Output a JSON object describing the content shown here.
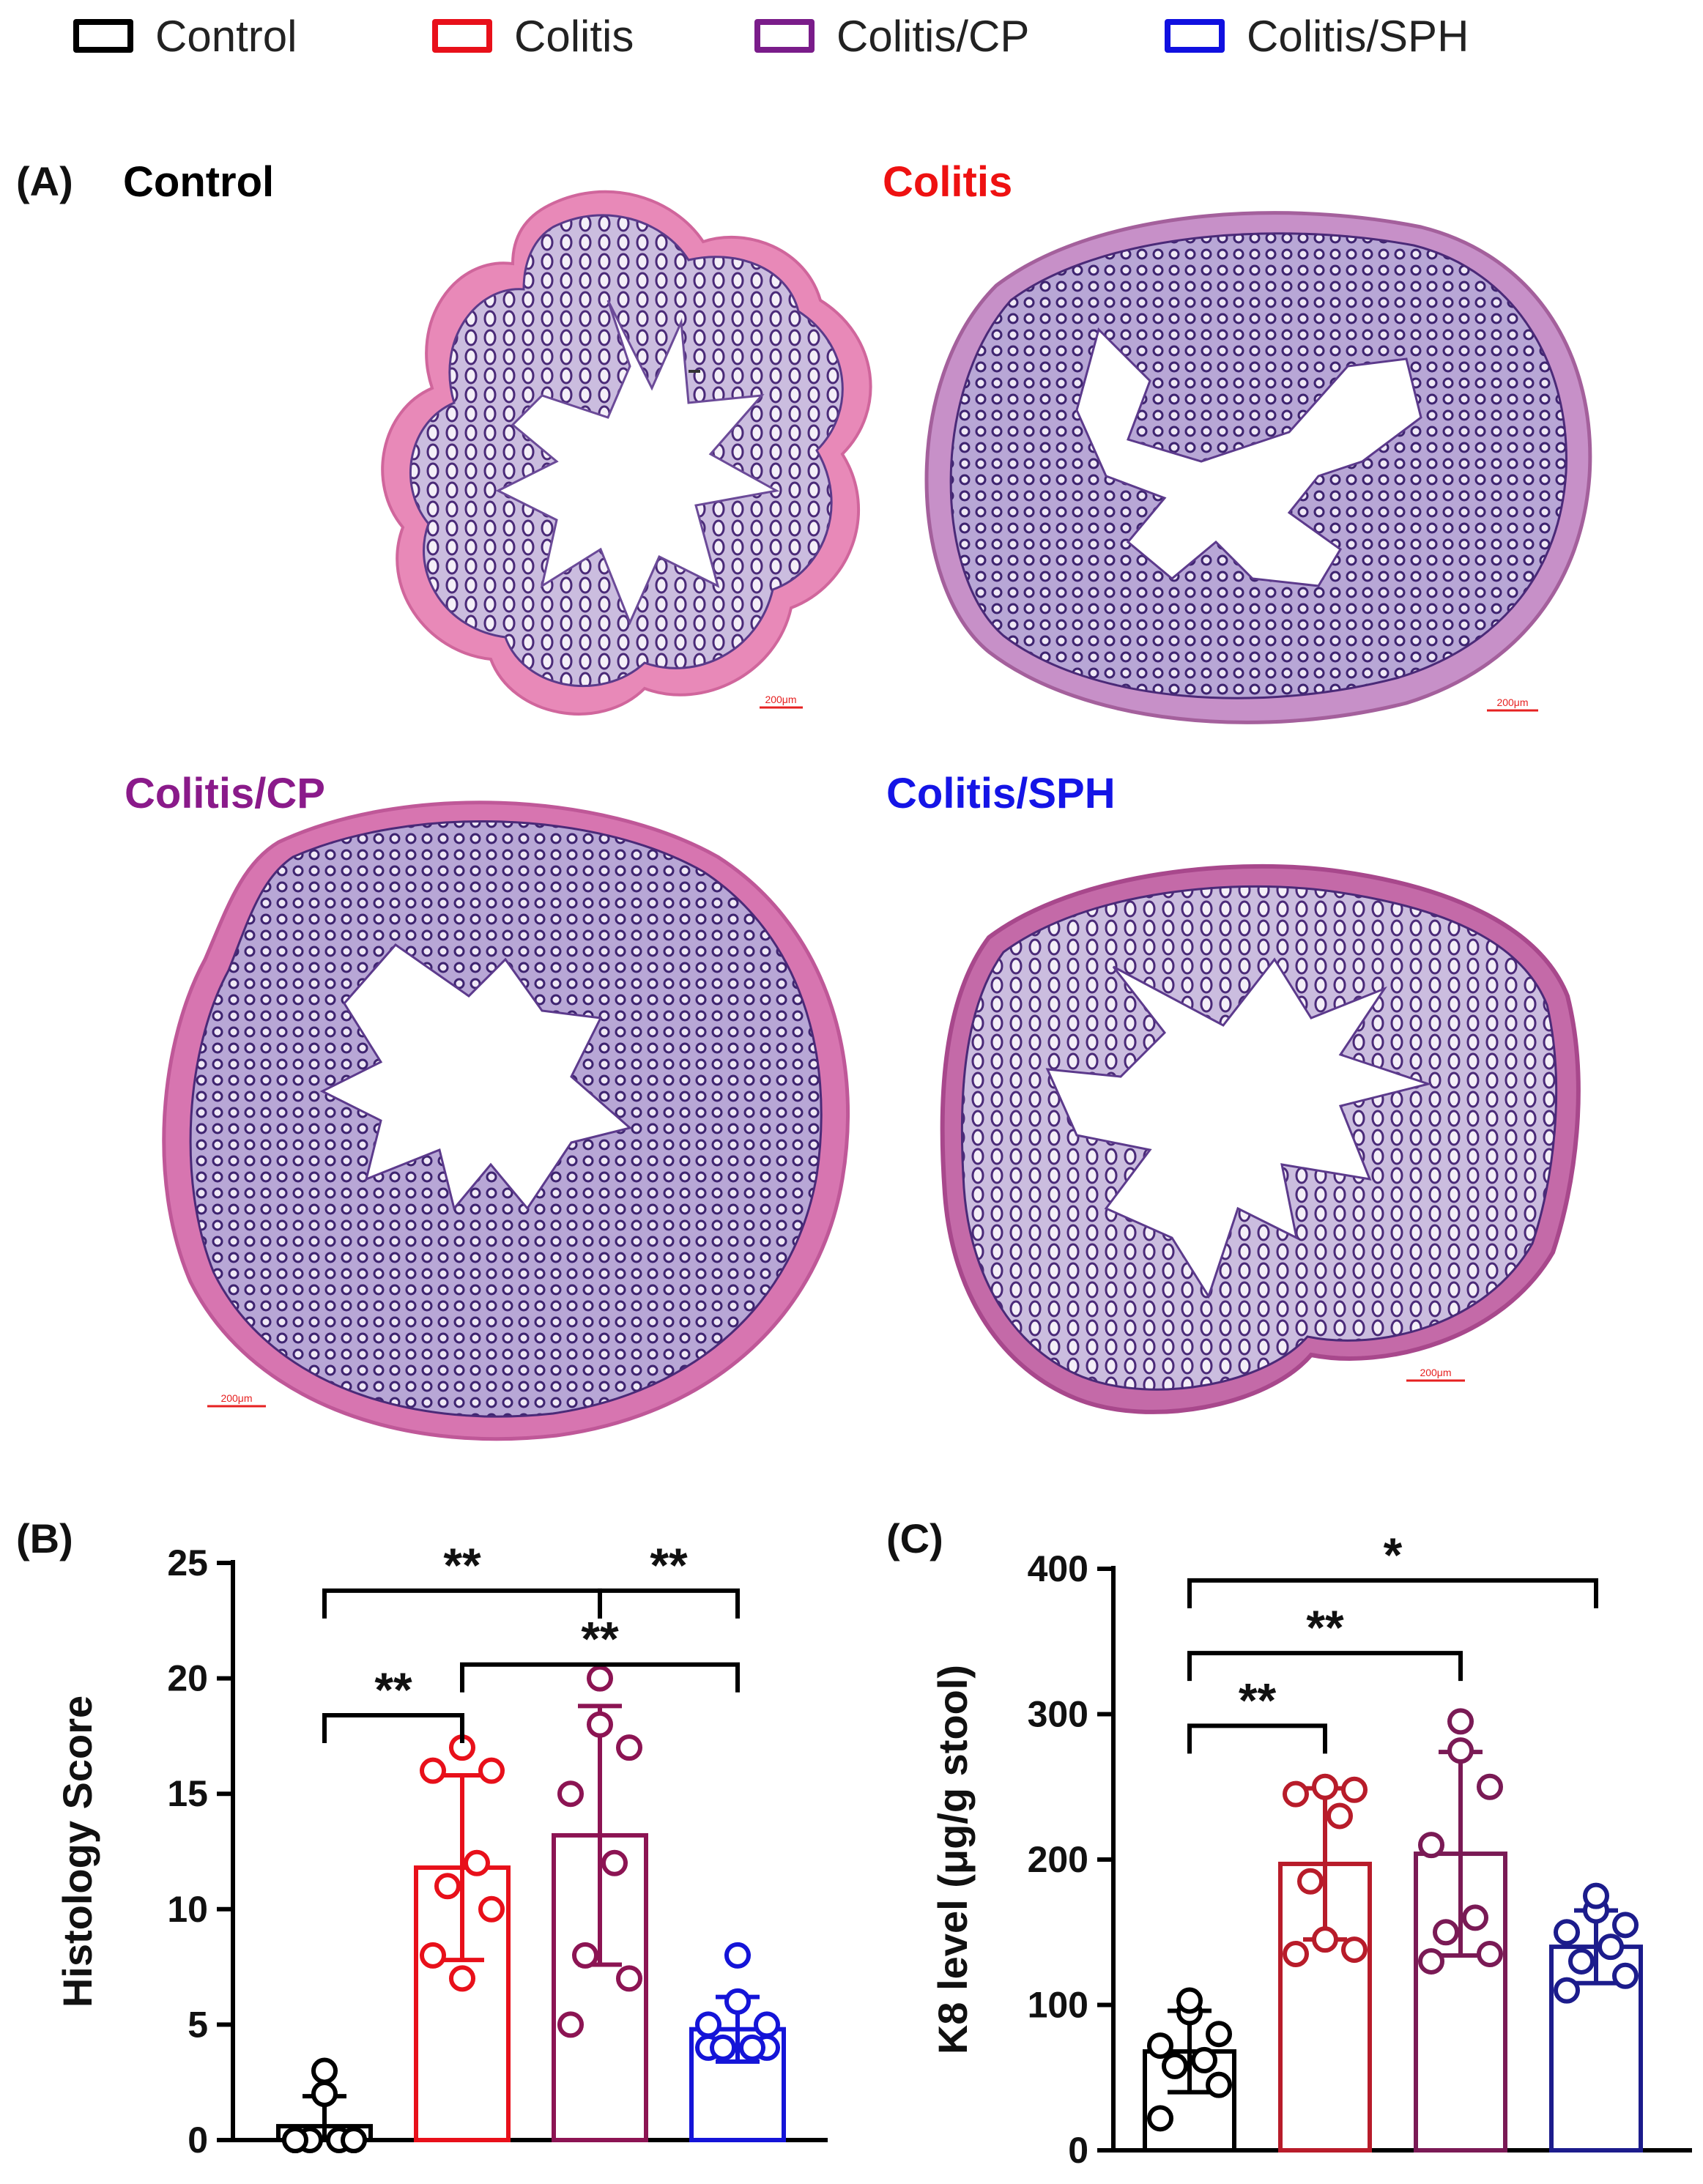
{
  "legend": [
    {
      "label": "Control",
      "color": "#000000"
    },
    {
      "label": "Colitis",
      "color": "#e8101a"
    },
    {
      "label": "Colitis/CP",
      "color": "#7a1c8a"
    },
    {
      "label": "Colitis/SPH",
      "color": "#1010e0"
    }
  ],
  "panel_a": {
    "label": "(A)",
    "images": [
      {
        "title": "Control",
        "title_color": "#000000",
        "scale_bar": "200μm"
      },
      {
        "title": "Colitis",
        "title_color": "#ee1111",
        "scale_bar": "200μm"
      },
      {
        "title": "Colitis/CP",
        "title_color": "#8a1a8a",
        "scale_bar": "200μm"
      },
      {
        "title": "Colitis/SPH",
        "title_color": "#1414e6",
        "scale_bar": "200μm"
      }
    ]
  },
  "chart_data": [
    {
      "panel_label": "(B)",
      "type": "bar",
      "categories": [
        "Control",
        "Colitis",
        "Colitis/CP",
        "Colitis/SPH"
      ],
      "colors": [
        "#000000",
        "#e8101a",
        "#8c1453",
        "#1414d8"
      ],
      "values": [
        0.6,
        11.8,
        13.2,
        4.8
      ],
      "sd": [
        1.3,
        4.0,
        5.6,
        1.4
      ],
      "points": [
        [
          0,
          0,
          0,
          0,
          0,
          0,
          2,
          3
        ],
        [
          8,
          10,
          11,
          12,
          16,
          16,
          17,
          7
        ],
        [
          5,
          7,
          8,
          12,
          15,
          17,
          18,
          20
        ],
        [
          4,
          4,
          4,
          4,
          5,
          5,
          6,
          8
        ]
      ],
      "ylabel": "Histology Score",
      "ylim": [
        0,
        25
      ],
      "yticks": [
        0,
        5,
        10,
        15,
        20,
        25
      ],
      "brackets": [
        {
          "from": 0,
          "to": 1,
          "y": 18.4,
          "label": "**"
        },
        {
          "from": 0,
          "to": 2,
          "y": 23.8,
          "label": "**"
        },
        {
          "from": 2,
          "to": 3,
          "y": 23.8,
          "label": "**"
        },
        {
          "from": 1,
          "to": 3,
          "y": 20.6,
          "label": "**"
        }
      ]
    },
    {
      "panel_label": "(C)",
      "type": "bar",
      "categories": [
        "Control",
        "Colitis",
        "Colitis/CP",
        "Colitis/SPH"
      ],
      "colors": [
        "#000000",
        "#b81c2a",
        "#7a1a55",
        "#1c1c8c"
      ],
      "values": [
        68,
        197,
        204,
        140
      ],
      "sd": [
        28,
        52,
        70,
        25
      ],
      "points": [
        [
          22,
          45,
          58,
          62,
          72,
          80,
          95,
          103
        ],
        [
          135,
          138,
          185,
          230,
          245,
          248,
          250,
          145
        ],
        [
          130,
          135,
          150,
          160,
          210,
          250,
          275,
          295
        ],
        [
          110,
          120,
          130,
          140,
          150,
          155,
          165,
          175
        ]
      ],
      "ylabel": "K8 level (μg/g stool)",
      "ylim": [
        0,
        400
      ],
      "yticks": [
        0,
        100,
        200,
        300,
        400
      ],
      "brackets": [
        {
          "from": 0,
          "to": 1,
          "y": 292,
          "label": "**"
        },
        {
          "from": 0,
          "to": 2,
          "y": 342,
          "label": "**"
        },
        {
          "from": 0,
          "to": 3,
          "y": 392,
          "label": "*"
        }
      ]
    }
  ]
}
